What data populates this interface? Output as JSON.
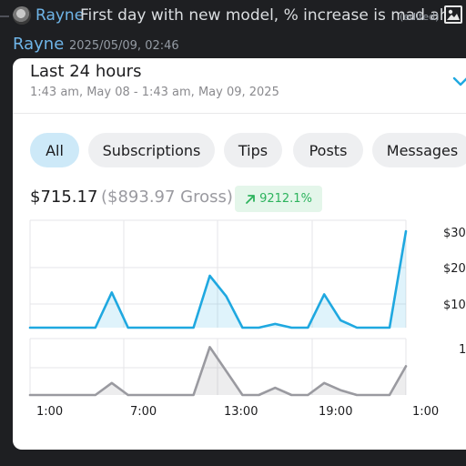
{
  "reply": {
    "author": "Rayne",
    "text": "First day with new model, % increase is mad aha",
    "edited": "(edited)",
    "image_icon": "image-icon"
  },
  "message": {
    "author": "Rayne",
    "timestamp": "2025/05/09, 02:46"
  },
  "card": {
    "title": "Last 24 hours",
    "range": "1:43 am, May 08 - 1:43 am, May 09, 2025",
    "chevron_icon": "chevron-down-icon",
    "filters": [
      {
        "label": "All",
        "active": true
      },
      {
        "label": "Subscriptions",
        "active": false
      },
      {
        "label": "Tips",
        "active": false
      },
      {
        "label": "Posts",
        "active": false
      },
      {
        "label": "Messages",
        "active": false
      }
    ],
    "earnings": "$715.17",
    "gross": "($893.97 Gross)",
    "change": "9212.1%",
    "change_icon": "arrow-up-right-icon",
    "accent": "#1fa8e0",
    "positive": "#2db35d"
  },
  "chart_data": [
    {
      "type": "area",
      "title": "",
      "x_ticks": [
        "1:00",
        "7:00",
        "13:00",
        "19:00",
        "1:00"
      ],
      "y_ticks": [
        "$10",
        "$20",
        "$30"
      ],
      "ylim": [
        0,
        28
      ],
      "grid": true,
      "series": [
        {
          "values": [
            0,
            0,
            0,
            0,
            0,
            9.5,
            0,
            0,
            0,
            0,
            0,
            14,
            8.5,
            0,
            0,
            1,
            0,
            0,
            9,
            2,
            0,
            0,
            0,
            26
          ]
        }
      ]
    },
    {
      "type": "area",
      "title": "",
      "x_ticks": [
        "1:00",
        "7:00",
        "13:00",
        "19:00",
        "1:00"
      ],
      "y_ticks": [
        "1"
      ],
      "ylim": [
        0,
        1.1
      ],
      "grid": true,
      "series": [
        {
          "values": [
            0,
            0,
            0,
            0,
            0,
            0.25,
            0,
            0,
            0,
            0,
            0,
            1,
            0.5,
            0,
            0,
            0.15,
            0,
            0,
            0.25,
            0.1,
            0,
            0,
            0,
            0.6
          ]
        }
      ]
    }
  ]
}
